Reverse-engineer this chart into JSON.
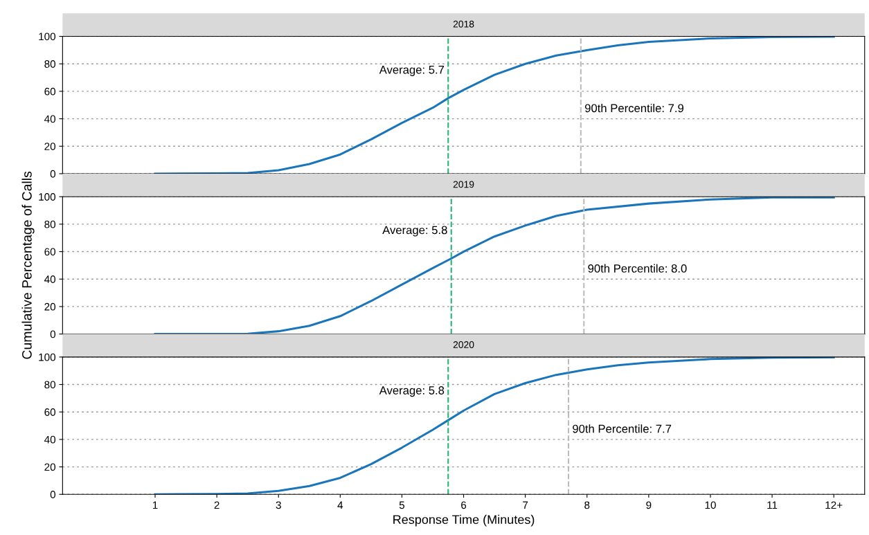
{
  "chart_data": [
    {
      "type": "line",
      "title": "2018",
      "xlim": [
        -0.5,
        12.5
      ],
      "ylim": [
        0,
        100
      ],
      "yticks": [
        0,
        20,
        40,
        60,
        80,
        100
      ],
      "grid": "y",
      "tick_labels": "y",
      "x": [
        1,
        2,
        2.5,
        3,
        3.5,
        4,
        4.5,
        5,
        5.5,
        5.75,
        6,
        6.5,
        7,
        7.5,
        8,
        8.5,
        9,
        10,
        11,
        12
      ],
      "series": [
        {
          "color": "#1a75bb",
          "values": [
            0,
            0.2,
            0.5,
            2.5,
            7,
            14,
            25,
            37,
            48,
            55,
            61,
            72,
            80,
            86,
            90,
            93.5,
            96,
            98.5,
            99.5,
            99.8
          ]
        }
      ],
      "ref_lines": [
        {
          "axis": "x",
          "value": 5.75,
          "label": "Average: 5.7",
          "color": "#22b573",
          "line_style": "dashed"
        },
        {
          "axis": "x",
          "value": 7.9,
          "label": "90th Percentile: 7.9",
          "color": "#bbbbbb",
          "line_style": "dashed"
        }
      ]
    },
    {
      "type": "line",
      "title": "2019",
      "ylabel": "Cumulative Percentage of Calls",
      "xlim": [
        -0.5,
        12.5
      ],
      "ylim": [
        0,
        100
      ],
      "yticks": [
        0,
        20,
        40,
        60,
        80,
        100
      ],
      "grid": "y",
      "tick_labels": "y",
      "x": [
        1,
        2,
        2.5,
        3,
        3.5,
        4,
        4.5,
        5,
        5.5,
        5.8,
        6,
        6.5,
        7,
        7.5,
        8,
        9,
        10,
        11,
        12
      ],
      "series": [
        {
          "color": "#1a75bb",
          "values": [
            0,
            0,
            0.2,
            2,
            6,
            13,
            24,
            36,
            48,
            55,
            60,
            71,
            79,
            86,
            90.5,
            95,
            98,
            99.5,
            99.5
          ]
        }
      ],
      "ref_lines": [
        {
          "axis": "x",
          "value": 5.8,
          "label": "Average: 5.8",
          "color": "#22b573",
          "line_style": "dashed"
        },
        {
          "axis": "x",
          "value": 7.95,
          "label": "90th Percentile: 8.0",
          "color": "#bbbbbb",
          "line_style": "dashed"
        }
      ]
    },
    {
      "type": "line",
      "title": "2020",
      "xlabel": "Response Time (Minutes)",
      "xlim": [
        -0.5,
        12.5
      ],
      "ylim": [
        0,
        100
      ],
      "yticks": [
        0,
        20,
        40,
        60,
        80,
        100
      ],
      "grid": "y",
      "xticks": [
        1,
        2,
        3,
        4,
        5,
        6,
        7,
        8,
        9,
        10,
        11,
        {
          "value": 12,
          "label": "12+"
        }
      ],
      "x": [
        1,
        2,
        2.5,
        3,
        3.5,
        4,
        4.5,
        5,
        5.5,
        5.75,
        6,
        6.5,
        7,
        7.5,
        8,
        8.5,
        9,
        10,
        11,
        12
      ],
      "series": [
        {
          "color": "#1a75bb",
          "values": [
            0,
            0.2,
            0.6,
            2.5,
            6,
            12,
            22,
            34,
            47,
            54,
            61,
            73,
            81,
            87,
            91,
            94,
            96,
            98.5,
            99.5,
            99.8
          ]
        }
      ],
      "ref_lines": [
        {
          "axis": "x",
          "value": 5.75,
          "label": "Average: 5.8",
          "color": "#22b573",
          "line_style": "dashed"
        },
        {
          "axis": "x",
          "value": 7.7,
          "label": "90th Percentile: 7.7",
          "color": "#bbbbbb",
          "line_style": "dashed"
        }
      ]
    }
  ]
}
